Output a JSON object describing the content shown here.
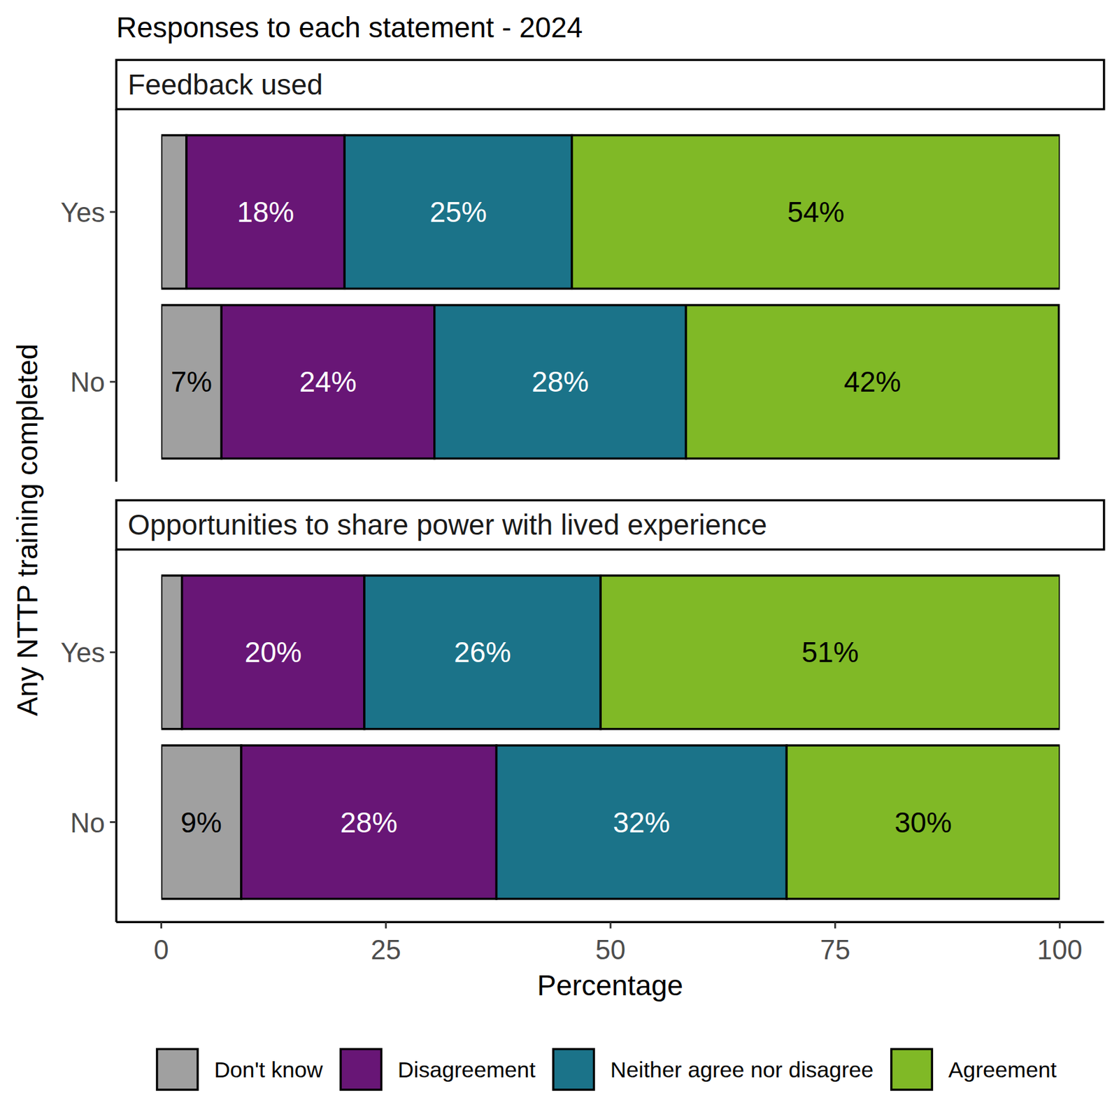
{
  "chart_data": {
    "type": "bar",
    "orientation": "horizontal",
    "stacked": true,
    "data_labels": true,
    "title": "Responses to each statement - 2024",
    "x_label": "Percentage",
    "y_label": "Any NTTP training completed",
    "categories": [
      "Yes",
      "No"
    ],
    "xlim": [
      0,
      100
    ],
    "xticks": [
      0,
      25,
      50,
      75,
      100
    ],
    "legend": "bottom",
    "panels": [
      {
        "title": "Feedback used",
        "series": [
          {
            "name": "Don't know",
            "color": "#a0a0a0",
            "values": [
              2.8,
              6.7
            ],
            "value_labels": [
              null,
              "7%"
            ]
          },
          {
            "name": "Disagreement",
            "color": "#681676",
            "values": [
              17.6,
              23.7
            ],
            "value_labels": [
              "18%",
              "24%"
            ]
          },
          {
            "name": "Neither agree nor disagree",
            "color": "#1b7389",
            "values": [
              25.3,
              28.0
            ],
            "value_labels": [
              "25%",
              "28%"
            ]
          },
          {
            "name": "Agreement",
            "color": "#80b926",
            "values": [
              54.3,
              41.5
            ],
            "value_labels": [
              "54%",
              "42%"
            ]
          }
        ]
      },
      {
        "title": "Opportunities to share power with lived experience",
        "series": [
          {
            "name": "Don't know",
            "color": "#a0a0a0",
            "values": [
              2.3,
              8.9
            ],
            "value_labels": [
              null,
              "9%"
            ]
          },
          {
            "name": "Disagreement",
            "color": "#681676",
            "values": [
              20.3,
              28.4
            ],
            "value_labels": [
              "20%",
              "28%"
            ]
          },
          {
            "name": "Neither agree nor disagree",
            "color": "#1b7389",
            "values": [
              26.3,
              32.3
            ],
            "value_labels": [
              "26%",
              "32%"
            ]
          },
          {
            "name": "Agreement",
            "color": "#80b926",
            "values": [
              51.1,
              30.4
            ],
            "value_labels": [
              "51%",
              "30%"
            ]
          }
        ]
      }
    ]
  }
}
